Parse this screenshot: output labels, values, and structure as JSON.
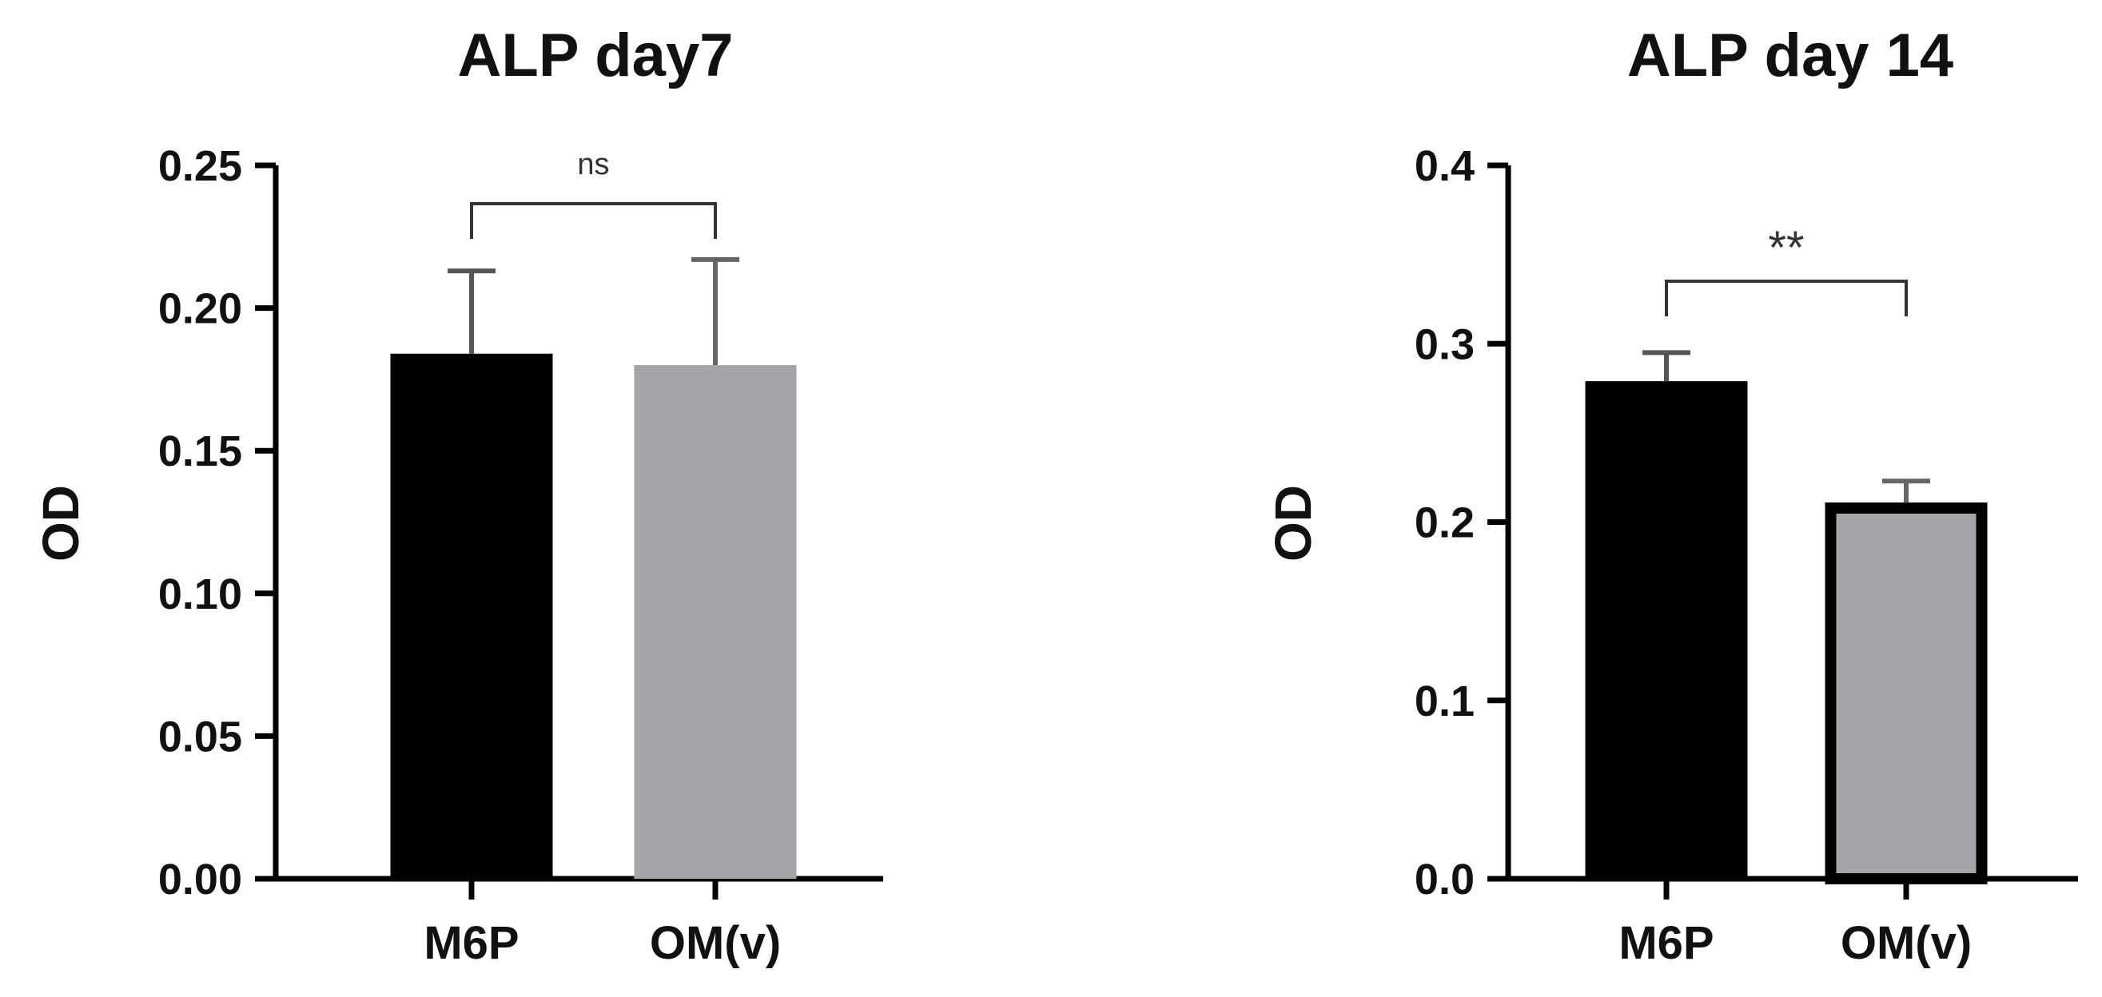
{
  "chart_data": [
    {
      "type": "bar",
      "title": "ALP day7",
      "xlabel": "",
      "ylabel": "OD",
      "ylim": [
        0,
        0.25
      ],
      "yticks": [
        "0.00",
        "0.05",
        "0.10",
        "0.15",
        "0.20",
        "0.25"
      ],
      "categories": [
        "M6P",
        "OM(v)"
      ],
      "values": [
        0.184,
        0.18
      ],
      "errors": [
        0.029,
        0.037
      ],
      "colors": [
        "#000000",
        "#a5a4a9"
      ],
      "significance": "ns",
      "grid": false
    },
    {
      "type": "bar",
      "title": "ALP day 14",
      "xlabel": "",
      "ylabel": "OD",
      "ylim": [
        0,
        0.4
      ],
      "yticks": [
        "0.0",
        "0.1",
        "0.2",
        "0.3",
        "0.4"
      ],
      "categories": [
        "M6P",
        "OM(v)"
      ],
      "values": [
        0.279,
        0.211
      ],
      "errors": [
        0.016,
        0.012
      ],
      "colors": [
        "#000000",
        "#a5a4a9"
      ],
      "significance": "**",
      "grid": false
    }
  ]
}
